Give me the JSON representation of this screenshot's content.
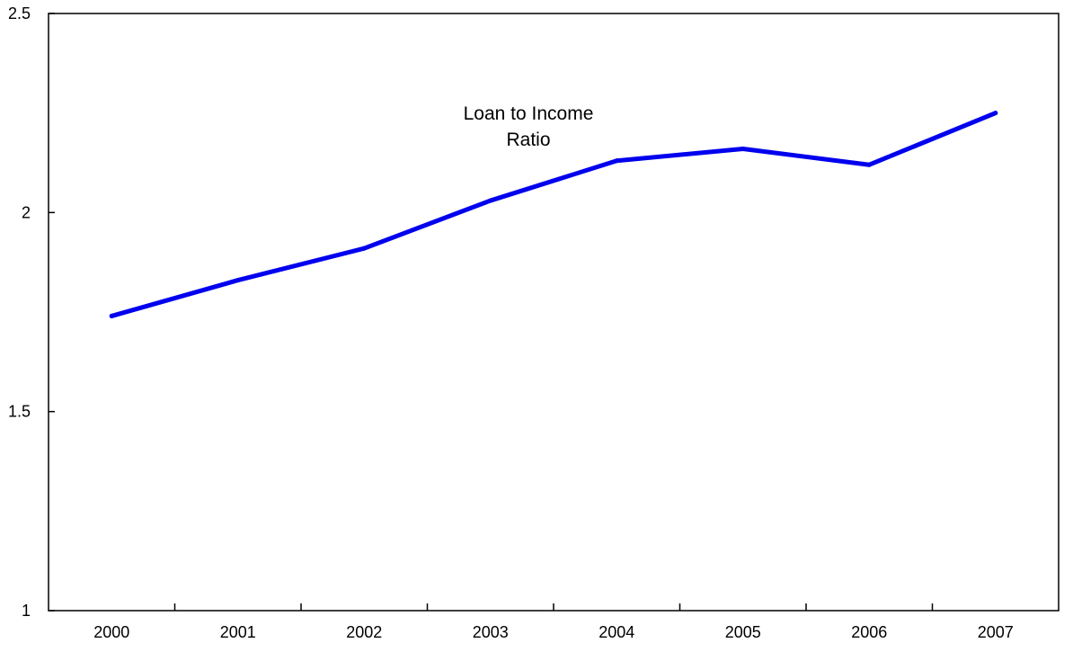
{
  "chart_data": {
    "type": "line",
    "title": "",
    "xlabel": "",
    "ylabel": "",
    "categories": [
      "2000",
      "2001",
      "2002",
      "2003",
      "2004",
      "2005",
      "2006",
      "2007"
    ],
    "series": [
      {
        "name": "Loan to Income Ratio",
        "values": [
          1.74,
          1.83,
          1.91,
          2.03,
          2.13,
          2.16,
          2.12,
          2.25
        ],
        "color": "#0000ee"
      }
    ],
    "ylim": [
      1,
      2.5
    ],
    "yticks": [
      1,
      1.5,
      2,
      2.5
    ],
    "ytick_labels": [
      "1",
      "1.5",
      "2",
      "2.5"
    ],
    "grid": false,
    "legend": "none",
    "annotation": {
      "lines": [
        "Loan to Income",
        "Ratio"
      ]
    }
  }
}
